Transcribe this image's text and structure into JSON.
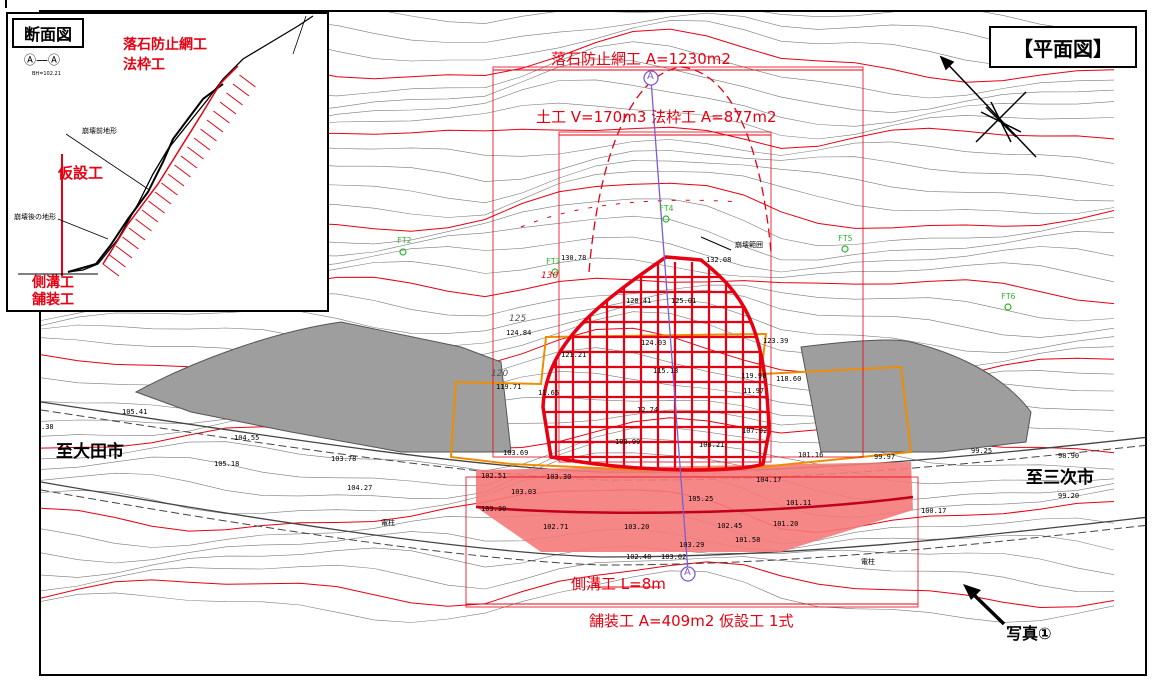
{
  "plan": {
    "title": "【平面図】",
    "net_label": "落石防止網工 A=1230m2",
    "earth_frame_label": "土工 V=170m3 法枠工 A=877m2",
    "ditch_label": "側溝工 L=8m",
    "paving_label": "舗装工 A=409m2 仮設工 1式",
    "city_left": "至大田市",
    "city_right": "至三次市",
    "photo_label": "写真①",
    "collapse_range_label": "崩壊範囲",
    "section_marker": "A",
    "points": [
      {
        "id": "p1",
        "text": "FT2"
      },
      {
        "id": "p2",
        "text": "FT3"
      },
      {
        "id": "p3",
        "text": "FT4"
      },
      {
        "id": "p4",
        "text": "FT5"
      },
      {
        "id": "p5",
        "text": "FT6"
      }
    ],
    "contour_labels": [
      "130",
      "125",
      "120"
    ],
    "elevations": [
      {
        "id": "e1",
        "text": "130.78"
      },
      {
        "id": "e2",
        "text": "132.08"
      },
      {
        "id": "e3",
        "text": "128.41"
      },
      {
        "id": "e4",
        "text": "125.01"
      },
      {
        "id": "e5",
        "text": "124.84"
      },
      {
        "id": "e6",
        "text": "124.03"
      },
      {
        "id": "e7",
        "text": "123.39"
      },
      {
        "id": "e8",
        "text": "121.21"
      },
      {
        "id": "e9",
        "text": "119.71"
      },
      {
        "id": "e10",
        "text": "118.60"
      },
      {
        "id": "e11",
        "text": "119.90"
      },
      {
        "id": "e12",
        "text": "115.13"
      },
      {
        "id": "e13",
        "text": "11.65"
      },
      {
        "id": "e14",
        "text": "11.97"
      },
      {
        "id": "e15",
        "text": "105.41"
      },
      {
        "id": "e16",
        "text": "104.55"
      },
      {
        "id": "e17",
        "text": "105.18"
      },
      {
        "id": "e18",
        "text": "103.78"
      },
      {
        "id": "e19",
        "text": "104.27"
      },
      {
        "id": "e20",
        "text": "12.74"
      },
      {
        "id": "e21",
        "text": "108.99"
      },
      {
        "id": "e22",
        "text": "108.21"
      },
      {
        "id": "e23",
        "text": "107.92"
      },
      {
        "id": "e24",
        "text": "103.69"
      },
      {
        "id": "e25",
        "text": "101.16"
      },
      {
        "id": "e26",
        "text": "99.97"
      },
      {
        "id": "e27",
        "text": "99.25"
      },
      {
        "id": "e28",
        "text": "98.90"
      },
      {
        "id": "e29",
        "text": "102.51"
      },
      {
        "id": "e30",
        "text": "103.30"
      },
      {
        "id": "e31",
        "text": "103.03"
      },
      {
        "id": "e32",
        "text": "104.17"
      },
      {
        "id": "e33",
        "text": "105.25"
      },
      {
        "id": "e34",
        "text": "101.11"
      },
      {
        "id": "e35",
        "text": "103.30"
      },
      {
        "id": "e36",
        "text": "102.71"
      },
      {
        "id": "e37",
        "text": "103.20"
      },
      {
        "id": "e38",
        "text": "102.45"
      },
      {
        "id": "e39",
        "text": "101.20"
      },
      {
        "id": "e40",
        "text": "101.58"
      },
      {
        "id": "e41",
        "text": "100.17"
      },
      {
        "id": "e42",
        "text": "99.20"
      },
      {
        "id": "e43",
        "text": "103.29"
      },
      {
        "id": "e44",
        "text": "102.48"
      },
      {
        "id": "e45",
        "text": "103.02"
      },
      {
        "id": "e46",
        "text": ".38"
      }
    ],
    "pole_label": "電柱"
  },
  "section": {
    "title": "断面図",
    "section_id": "Ⓐ—Ⓐ",
    "section_sub": "BH=102.21",
    "label_net": "落石防止網工",
    "label_frame": "法枠工",
    "label_before": "崩壊前地形",
    "label_temp": "仮設工",
    "label_after": "崩壊後の地形",
    "label_ditch": "側溝工",
    "label_paving": "舗装工"
  },
  "colors": {
    "red": "#e60012",
    "orange": "#f08c00",
    "pink_fill": "#f47a7a",
    "gray_fill": "#9e9e9e",
    "green": "#2db42d",
    "purple": "#7b5cd6"
  }
}
